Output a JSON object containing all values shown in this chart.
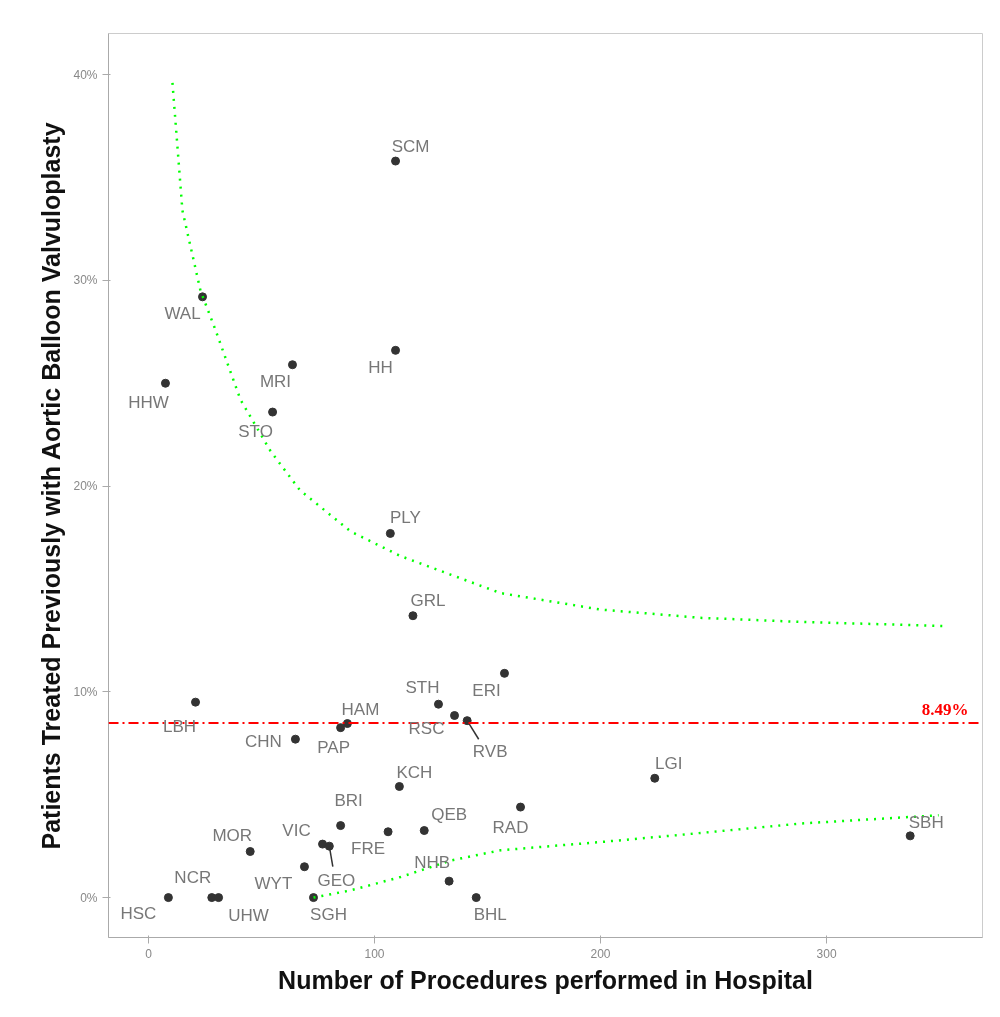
{
  "chart_data": {
    "type": "scatter",
    "xlabel": "Number of Procedures performed in Hospital",
    "ylabel": "Patients Treated Previously with Aortic Balloon Valvuloplasty",
    "xlim": [
      -17.7,
      369
    ],
    "xticks": [
      0,
      100,
      200,
      300
    ],
    "ylim": [
      -1.94,
      42.0
    ],
    "yticks": [
      {
        "value": 0,
        "label": "0%"
      },
      {
        "value": 10,
        "label": "10%"
      },
      {
        "value": 20,
        "label": "20%"
      },
      {
        "value": 30,
        "label": "30%"
      },
      {
        "value": 40,
        "label": "40%"
      }
    ],
    "grid": false,
    "series": [
      {
        "marker": "circle",
        "color": "#333333",
        "x": [
          109.3,
          23.9,
          109.3,
          63.7,
          7.5,
          54.9,
          107,
          117,
          157.5,
          128.3,
          20.8,
          135.4,
          141,
          88,
          85,
          65,
          224,
          111,
          164.6,
          85,
          106,
          122,
          337,
          77,
          80,
          45,
          69,
          133,
          8.8,
          28,
          31,
          73,
          145
        ],
        "values": [
          35.8,
          29.2,
          26.6,
          25.9,
          25.0,
          23.6,
          17.7,
          13.7,
          10.9,
          9.4,
          9.5,
          8.85,
          8.6,
          8.46,
          8.26,
          7.7,
          5.8,
          5.4,
          4.4,
          3.5,
          3.2,
          3.26,
          3.0,
          2.6,
          2.5,
          2.24,
          1.5,
          0.8,
          0,
          0,
          0,
          0,
          0
        ]
      },
      {
        "type": "line",
        "line_style": "dotted",
        "color": "#00ff00",
        "x": [
          10.6,
          15,
          23,
          29.6,
          40.7,
          54,
          67,
          89.4,
          111.5,
          133.6,
          155.8,
          200,
          244,
          288.5,
          351.8
        ],
        "values": [
          39.6,
          33.4,
          29.5,
          27.6,
          24.2,
          21.7,
          19.8,
          17.8,
          16.6,
          15.7,
          14.8,
          14.0,
          13.6,
          13.4,
          13.2
        ]
      },
      {
        "type": "line",
        "line_style": "dotted",
        "color": "#00ff00",
        "x": [
          73,
          89.4,
          111.5,
          133.6,
          155.8,
          200,
          230.5,
          288.5,
          349.6
        ],
        "values": [
          0,
          0.35,
          1.0,
          1.8,
          2.3,
          2.7,
          3.0,
          3.6,
          4.0
        ]
      }
    ],
    "ref_lines": [
      {
        "axis": "y",
        "value": 8.49,
        "label": "8.49%",
        "color": "#ff0000",
        "line_style": "dashdot"
      }
    ],
    "annotations": [
      {
        "text": "SCM",
        "x": 109.3,
        "y": 35.8
      },
      {
        "text": "WAL",
        "x": 23.9,
        "y": 29.2
      },
      {
        "text": "HH",
        "x": 109.3,
        "y": 26.6
      },
      {
        "text": "MRI",
        "x": 63.7,
        "y": 25.9
      },
      {
        "text": "HHW",
        "x": 7.5,
        "y": 25.0
      },
      {
        "text": "STO",
        "x": 54.9,
        "y": 23.6
      },
      {
        "text": "PLY",
        "x": 107,
        "y": 17.7
      },
      {
        "text": "GRL",
        "x": 117,
        "y": 13.7
      },
      {
        "text": "ERI",
        "x": 157.5,
        "y": 10.9
      },
      {
        "text": "STH",
        "x": 128.3,
        "y": 9.4
      },
      {
        "text": "LBH",
        "x": 20.8,
        "y": 9.5
      },
      {
        "text": "RSC",
        "x": 135.4,
        "y": 8.85
      },
      {
        "text": "RVB",
        "x": 141,
        "y": 8.6
      },
      {
        "text": "HAM",
        "x": 88,
        "y": 8.46
      },
      {
        "text": "PAP",
        "x": 85,
        "y": 8.26
      },
      {
        "text": "CHN",
        "x": 65,
        "y": 7.7
      },
      {
        "text": "LGI",
        "x": 224,
        "y": 5.8
      },
      {
        "text": "KCH",
        "x": 111,
        "y": 5.4
      },
      {
        "text": "RAD",
        "x": 164.6,
        "y": 4.4
      },
      {
        "text": "BRI",
        "x": 85,
        "y": 3.5
      },
      {
        "text": "FRE",
        "x": 106,
        "y": 3.2
      },
      {
        "text": "QEB",
        "x": 122,
        "y": 3.26
      },
      {
        "text": "SBH",
        "x": 337,
        "y": 3.0
      },
      {
        "text": "VIC",
        "x": 77,
        "y": 2.6
      },
      {
        "text": "GEO",
        "x": 80,
        "y": 2.5
      },
      {
        "text": "MOR",
        "x": 45,
        "y": 2.24
      },
      {
        "text": "WYT",
        "x": 69,
        "y": 1.5
      },
      {
        "text": "NHB",
        "x": 133,
        "y": 0.8
      },
      {
        "text": "HSC",
        "x": 8.8,
        "y": 0
      },
      {
        "text": "NCR",
        "x": 28,
        "y": 0
      },
      {
        "text": "UHW",
        "x": 31,
        "y": 0
      },
      {
        "text": "SGH",
        "x": 73,
        "y": 0
      },
      {
        "text": "BHL",
        "x": 145,
        "y": 0
      }
    ]
  }
}
